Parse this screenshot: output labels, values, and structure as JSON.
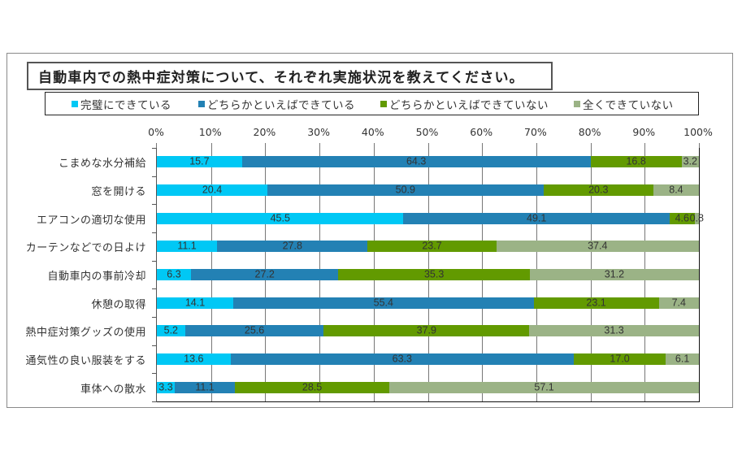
{
  "title": "自動車内での熱中症対策について、それぞれ実施状況を教えてください。",
  "legend": [
    {
      "label": "完璧にできている",
      "color": "#00c8f5"
    },
    {
      "label": "どちらかといえばできている",
      "color": "#2381b4"
    },
    {
      "label": "どちらかといえばできていない",
      "color": "#629a00"
    },
    {
      "label": "全くできていない",
      "color": "#9bb386"
    }
  ],
  "axis_ticks": [
    "0%",
    "10%",
    "20%",
    "30%",
    "40%",
    "50%",
    "60%",
    "70%",
    "80%",
    "90%",
    "100%"
  ],
  "chart_data": {
    "type": "bar",
    "orientation": "horizontal",
    "stacked": true,
    "percent": true,
    "title": "自動車内での熱中症対策について、それぞれ実施状況を教えてください。",
    "xlabel": "",
    "ylabel": "",
    "xlim": [
      0,
      100
    ],
    "x_ticks": [
      "0%",
      "10%",
      "20%",
      "30%",
      "40%",
      "50%",
      "60%",
      "70%",
      "80%",
      "90%",
      "100%"
    ],
    "grid": true,
    "legend_position": "top",
    "categories": [
      "こまめな水分補給",
      "窓を開ける",
      "エアコンの適切な使用",
      "カーテンなどでの日よけ",
      "自動車内の事前冷却",
      "休憩の取得",
      "熱中症対策グッズの使用",
      "通気性の良い服装をする",
      "車体への散水"
    ],
    "series": [
      {
        "name": "完璧にできている",
        "color": "#00c8f5",
        "values": [
          15.7,
          20.4,
          45.5,
          11.1,
          6.3,
          14.1,
          5.2,
          13.6,
          3.3
        ]
      },
      {
        "name": "どちらかといえばできている",
        "color": "#2381b4",
        "values": [
          64.3,
          50.9,
          49.1,
          27.8,
          27.2,
          55.4,
          25.6,
          63.3,
          11.1
        ]
      },
      {
        "name": "どちらかといえばできていない",
        "color": "#629a00",
        "values": [
          16.8,
          20.3,
          4.6,
          23.7,
          35.3,
          23.1,
          37.9,
          17.0,
          28.5
        ]
      },
      {
        "name": "全くできていない",
        "color": "#9bb386",
        "values": [
          3.2,
          8.4,
          0.8,
          37.4,
          31.2,
          7.4,
          31.3,
          6.1,
          57.1
        ]
      }
    ]
  }
}
